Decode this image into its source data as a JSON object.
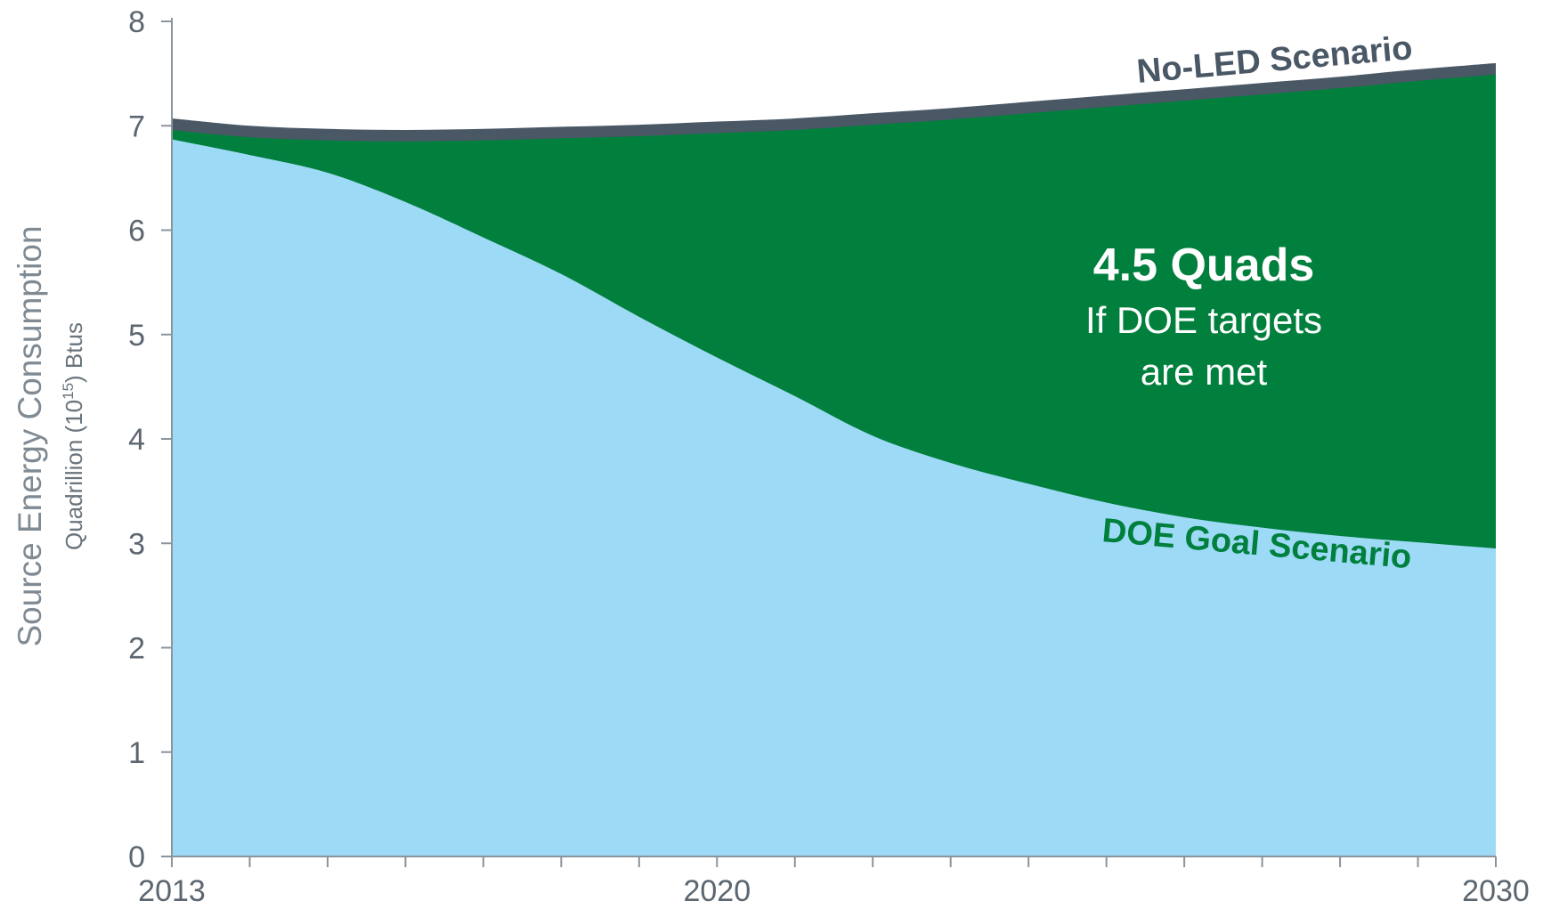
{
  "chart_data": {
    "type": "area",
    "title": "",
    "ylabel": "Source Energy Consumption",
    "ylabel_sub": "Quadrillion (10",
    "ylabel_sup": "15",
    "ylabel_sub_end": ") Btus",
    "xlabel": "",
    "xlim": [
      2013,
      2030
    ],
    "ylim": [
      0,
      8
    ],
    "x_tick_labels": [
      "2013",
      "2020",
      "2030"
    ],
    "y_tick_labels": [
      "0",
      "1",
      "2",
      "3",
      "4",
      "5",
      "6",
      "7",
      "8"
    ],
    "grid": false,
    "x": [
      2013,
      2014,
      2015,
      2016,
      2017,
      2018,
      2019,
      2020,
      2021,
      2022,
      2023,
      2024,
      2025,
      2026,
      2027,
      2028,
      2029,
      2030
    ],
    "series": [
      {
        "name": "No-LED Scenario",
        "values": [
          7.07,
          7.0,
          6.97,
          6.96,
          6.97,
          6.99,
          7.01,
          7.04,
          7.07,
          7.12,
          7.17,
          7.23,
          7.29,
          7.35,
          7.41,
          7.47,
          7.54,
          7.6
        ]
      },
      {
        "name": "DOE Goal Scenario",
        "values": [
          6.87,
          6.72,
          6.55,
          6.27,
          5.93,
          5.58,
          5.17,
          4.78,
          4.41,
          4.03,
          3.77,
          3.57,
          3.39,
          3.25,
          3.15,
          3.07,
          3.01,
          2.95
        ]
      }
    ],
    "annotation": {
      "value": "4.5 Quads",
      "line1": "If DOE targets",
      "line2": "are met"
    },
    "colors": {
      "no_led": "#4a5866",
      "savings": "#007f3d",
      "doe_goal": "#9ddaf5",
      "axis": "#8a949c",
      "label_no_led": "#4a5866",
      "label_doe": "#007f3d"
    }
  }
}
